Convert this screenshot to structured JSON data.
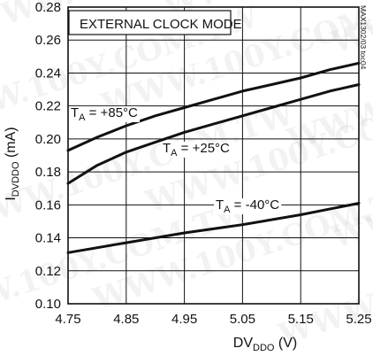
{
  "chart_data": {
    "type": "line",
    "title": "",
    "xlabel": "DV",
    "xlabel_sub": "DDO",
    "xlabel_unit": " (V)",
    "ylabel": "I",
    "ylabel_sub": "DVDDO",
    "ylabel_unit": " (mA)",
    "xlim": [
      4.75,
      5.25
    ],
    "ylim": [
      0.1,
      0.28
    ],
    "x_ticks": [
      "4.75",
      "4.85",
      "4.95",
      "5.05",
      "5.15",
      "5.25"
    ],
    "x_tick_values": [
      4.75,
      4.85,
      4.95,
      5.05,
      5.15,
      5.25
    ],
    "y_ticks": [
      "0.10",
      "0.12",
      "0.14",
      "0.16",
      "0.18",
      "0.20",
      "0.22",
      "0.24",
      "0.26",
      "0.28"
    ],
    "y_tick_values": [
      0.1,
      0.12,
      0.14,
      0.16,
      0.18,
      0.2,
      0.22,
      0.24,
      0.26,
      0.28
    ],
    "grid": true,
    "box_label": "EXTERNAL CLOCK MODE",
    "side_code": "MAX1302/03 toc04",
    "series": [
      {
        "name": "T_A = +85°C",
        "label_main": "T",
        "label_sub": "A",
        "label_rest": " = +85°C",
        "x": [
          4.75,
          4.8,
          4.85,
          4.9,
          4.95,
          5.0,
          5.05,
          5.1,
          5.15,
          5.2,
          5.25
        ],
        "y": [
          0.193,
          0.201,
          0.208,
          0.214,
          0.219,
          0.224,
          0.229,
          0.233,
          0.237,
          0.242,
          0.246
        ]
      },
      {
        "name": "T_A = +25°C",
        "label_main": "T",
        "label_sub": "A",
        "label_rest": " = +25°C",
        "x": [
          4.75,
          4.8,
          4.85,
          4.9,
          4.95,
          5.0,
          5.05,
          5.1,
          5.15,
          5.2,
          5.25
        ],
        "y": [
          0.173,
          0.184,
          0.192,
          0.198,
          0.204,
          0.209,
          0.214,
          0.219,
          0.224,
          0.229,
          0.233
        ]
      },
      {
        "name": "T_A = -40°C",
        "label_main": "T",
        "label_sub": "A",
        "label_rest": " = -40°C",
        "x": [
          4.75,
          4.85,
          4.95,
          5.05,
          5.15,
          5.25
        ],
        "y": [
          0.131,
          0.137,
          0.143,
          0.148,
          0.154,
          0.161
        ]
      }
    ],
    "watermarks": [
      "WWW.100Y.COM.TW",
      "WWW.100Y.COM.TW",
      "WWW.100Y.COM.TW",
      "WWW.100Y.COM.TW",
      "WWW.100Y.COM.TW",
      "WWW.100Y.COM.TW",
      "WWW.100Y.COM.TW",
      "WWW.100Y.COM.TW",
      "WWW.100Y.COM.TW",
      "WWW.100Y.COM.TW",
      "WWW.100Y.COM.TW",
      "WWW.100Y.COM.TW"
    ]
  }
}
